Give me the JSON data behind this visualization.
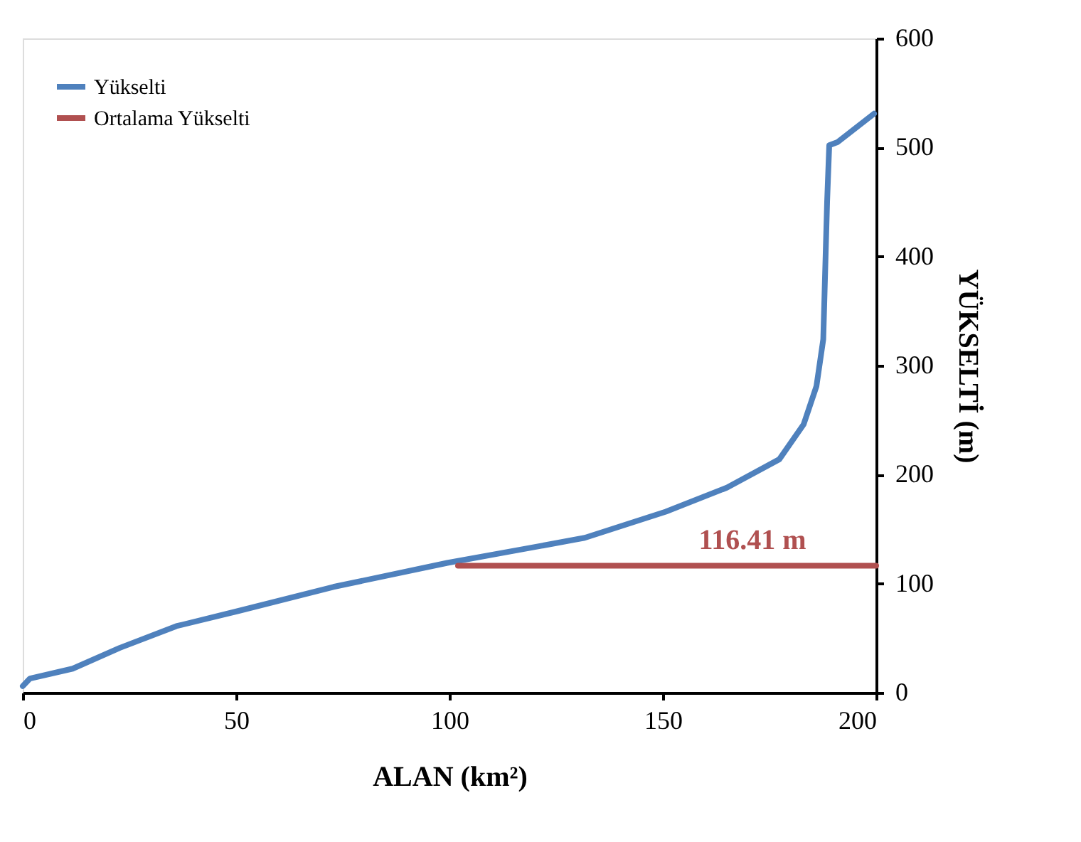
{
  "chart_data": {
    "type": "line",
    "xlabel": "ALAN (km²)",
    "ylabel": "YÜKSELTİ (m)",
    "series": [
      {
        "name": "Yükselti",
        "color": "#4f81bd",
        "x": [
          0,
          1.7,
          11.7,
          22.7,
          36,
          50.6,
          72.8,
          99.5,
          115,
          131.7,
          150.7,
          165,
          177.3,
          183,
          186,
          187.6,
          188,
          188.5,
          189,
          191,
          199.5
        ],
        "values": [
          6,
          13,
          22,
          41,
          61,
          75,
          97,
          119,
          130,
          142,
          166,
          188,
          214,
          246,
          281,
          324,
          380,
          450,
          502,
          505,
          531
        ]
      },
      {
        "name": "Ortalama Yükselti",
        "color": "#b05050",
        "x": [
          102,
          200
        ],
        "values": [
          116.41,
          116.41
        ]
      }
    ],
    "annotations": [
      {
        "text": "116.41 m",
        "x": 171,
        "y": 116.41
      }
    ],
    "xlim": [
      0,
      200
    ],
    "xticks": [
      0,
      50,
      100,
      150,
      200
    ],
    "ylim": [
      0,
      600
    ],
    "yticks": [
      0,
      100,
      200,
      300,
      400,
      500,
      600
    ],
    "grid": false,
    "legend": "top left",
    "line_style": "solid",
    "marker": "none"
  }
}
